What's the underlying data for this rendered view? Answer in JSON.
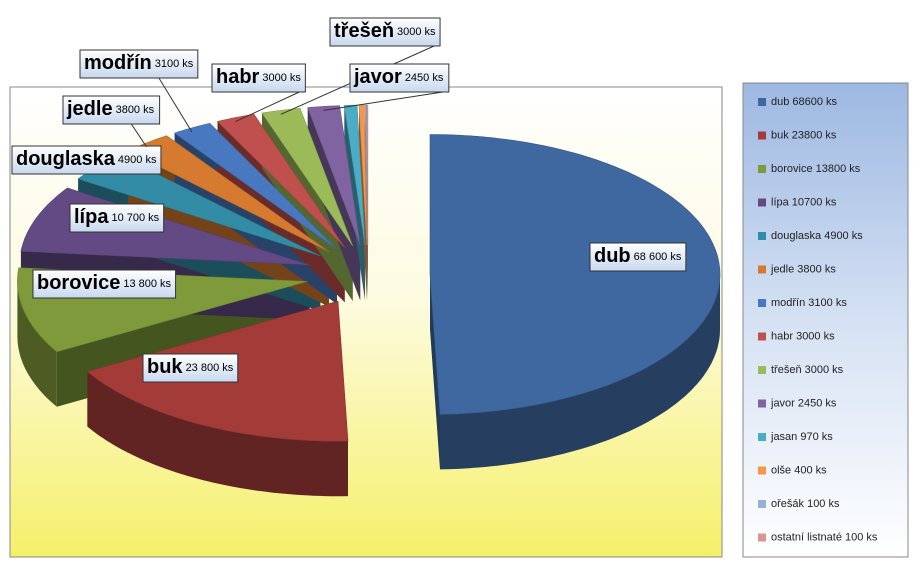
{
  "chart_data": {
    "type": "pie3d",
    "categories": [
      "dub",
      "buk",
      "borovice",
      "lípa",
      "douglaska",
      "jedle",
      "modřín",
      "habr",
      "třešeň",
      "javor",
      "jasan",
      "olše",
      "ořešák",
      "ostatní listnaté"
    ],
    "values": [
      68600,
      23800,
      13800,
      10700,
      4900,
      3800,
      3100,
      3000,
      3000,
      2450,
      970,
      400,
      100,
      100
    ],
    "value_labels": [
      "68 600 ks",
      "23 800 ks",
      "13 800 ks",
      "10 700 ks",
      "4900 ks",
      "3800 ks",
      "3100 ks",
      "3000 ks",
      "3000 ks",
      "2450 ks",
      null,
      null,
      null,
      null
    ],
    "legend_labels": [
      "dub 68600 ks",
      "buk 23800 ks",
      "borovice 13800 ks",
      "lípa 10700 ks",
      "douglaska 4900 ks",
      "jedle 3800 ks",
      "modřín 3100 ks",
      "habr 3000 ks",
      "třešeň 3000 ks",
      "javor 2450 ks",
      "jasan 970 ks",
      "olše 400 ks",
      "ořešák 100 ks",
      "ostatní  listnaté  100 ks"
    ],
    "colors": [
      "#3f67a0",
      "#a33c39",
      "#7e9a3b",
      "#634a85",
      "#338ca6",
      "#d57a2e",
      "#4878bf",
      "#c0504d",
      "#9bbb59",
      "#8064a2",
      "#4bacc6",
      "#f79646",
      "#95b3d7",
      "#d99694"
    ],
    "legend": "right"
  }
}
